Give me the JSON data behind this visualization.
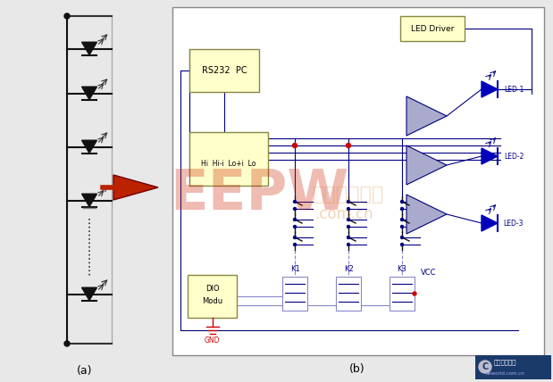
{
  "bg_color": "#e8e8e8",
  "panel_bg": "#ffffff",
  "box_fill_yellow": "#ffffcc",
  "box_fill_white": "#ffffff",
  "line_blue": "#000080",
  "line_dark": "#111111",
  "line_gray": "#aaaaaa",
  "line_red": "#cc0000",
  "line_violet": "#6666aa",
  "diode_fill": "#111111",
  "led_fill": "#0000bb",
  "amp_fill": "#aaaacc",
  "amp_edge": "#000080",
  "arrow_fill": "#cc2200",
  "label_a": "(a)",
  "label_b": "(b)",
  "label_rs232": "RS232  PC",
  "label_hi": "Hi  Hi-i  Lo+i  Lo",
  "label_led_driver": "LED Driver",
  "label_dio": "DIO\nModu",
  "label_gnd": "GND",
  "label_vcc": "VCC",
  "label_k1": "K1",
  "label_k2": "K2",
  "label_k3": "K3",
  "label_led1": "LED-1",
  "label_led2": "LED-2",
  "label_led3": "LED-3"
}
